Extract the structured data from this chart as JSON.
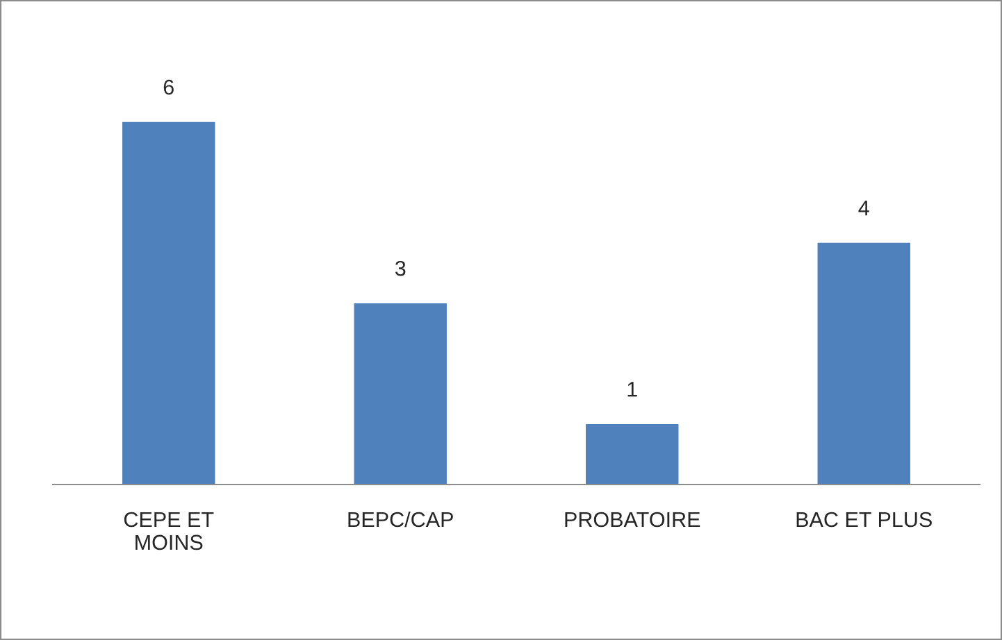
{
  "chart_data": {
    "type": "bar",
    "categories": [
      "CEPE ET\nMOINS",
      "BEPC/CAP",
      "PROBATOIRE",
      "BAC ET PLUS"
    ],
    "values": [
      6,
      3,
      1,
      4
    ],
    "color": "#4f81bd",
    "data_labels": true,
    "grid": false,
    "legend": false
  }
}
